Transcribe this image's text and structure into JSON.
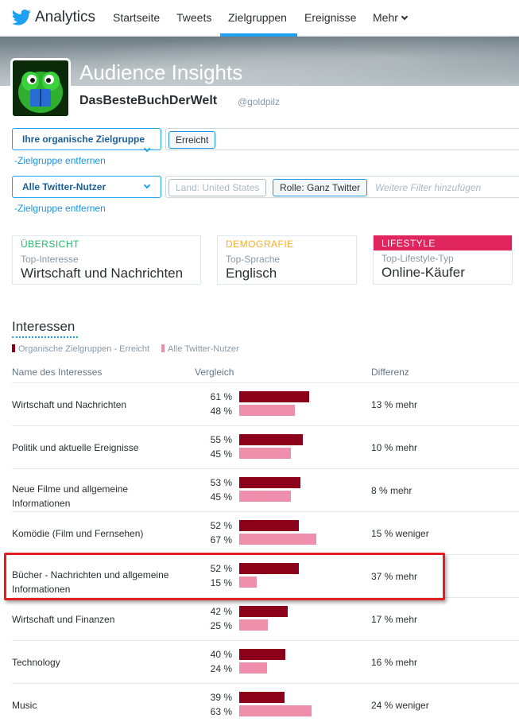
{
  "nav": {
    "brand": "Analytics",
    "items": [
      "Startseite",
      "Tweets",
      "Zielgruppen",
      "Ereignisse",
      "Mehr"
    ],
    "active": "Zielgruppen",
    "accent": "#1da1f2"
  },
  "header": {
    "title": "Audience Insights",
    "username": "DasBesteBuchDerWelt",
    "handle": "@goldpilz"
  },
  "filters": {
    "audience_select": "Ihre organische Zielgruppe",
    "audience_remove": "-Zielgruppe entfernen",
    "audience_chip": "Erreicht",
    "comparison_select": "Alle Twitter-Nutzer",
    "comparison_remove": "-Zielgruppe entfernen",
    "comparison_chip_land": "Land: United States",
    "comparison_chip_rolle": "Rolle: Ganz Twitter",
    "comparison_placeholder": "Weitere Filter hinzufügen"
  },
  "cards": [
    {
      "label": "ÜBERSICHT",
      "sub": "Top-Interesse",
      "value": "Wirtschaft und Nachrichten",
      "color": "#17bf63"
    },
    {
      "label": "DEMOGRAFIE",
      "sub": "Top-Sprache",
      "value": "Englisch",
      "color": "#ffad1f"
    },
    {
      "label": "LIFESTYLE",
      "sub": "Top-Lifestyle-Typ",
      "value": "Online-Käufer",
      "color": "#e0245e"
    }
  ],
  "interests": {
    "title": "Interessen",
    "legend_org": "Organische Zielgruppen - Erreicht",
    "legend_all": "Alle Twitter-Nutzer",
    "color_org": "#8c001a",
    "color_all": "#f08fab",
    "col_name": "Name des Interesses",
    "col_compare": "Vergleich",
    "col_diff": "Differenz",
    "rows": [
      {
        "name": "Wirtschaft und Nachrichten",
        "org_label": "61 %",
        "all_label": "48 %",
        "org": 61,
        "all": 48,
        "diff": "13 % mehr"
      },
      {
        "name": "Politik und aktuelle Ereignisse",
        "org_label": "55 %",
        "all_label": "45 %",
        "org": 55,
        "all": 45,
        "diff": "10 % mehr"
      },
      {
        "name": "Neue Filme und allgemeine Informationen",
        "org_label": "53 %",
        "all_label": "45 %",
        "org": 53,
        "all": 45,
        "diff": "8 % mehr"
      },
      {
        "name": "Komödie (Film und Fernsehen)",
        "org_label": "52 %",
        "all_label": "67 %",
        "org": 52,
        "all": 67,
        "diff": "15 % weniger"
      },
      {
        "name": "Bücher - Nachrichten und allgemeine Informationen",
        "org_label": "52 %",
        "all_label": "15 %",
        "org": 52,
        "all": 15,
        "diff": "37 % mehr",
        "highlighted": true
      },
      {
        "name": "Wirtschaft und Finanzen",
        "org_label": "42 %",
        "all_label": "25 %",
        "org": 42,
        "all": 25,
        "diff": "17 % mehr"
      },
      {
        "name": "Technology",
        "org_label": "40 %",
        "all_label": "24 %",
        "org": 40,
        "all": 24,
        "diff": "16 % mehr"
      },
      {
        "name": "Music",
        "org_label": "39 %",
        "all_label": "63 %",
        "org": 39,
        "all": 63,
        "diff": "24 % weniger"
      }
    ]
  }
}
